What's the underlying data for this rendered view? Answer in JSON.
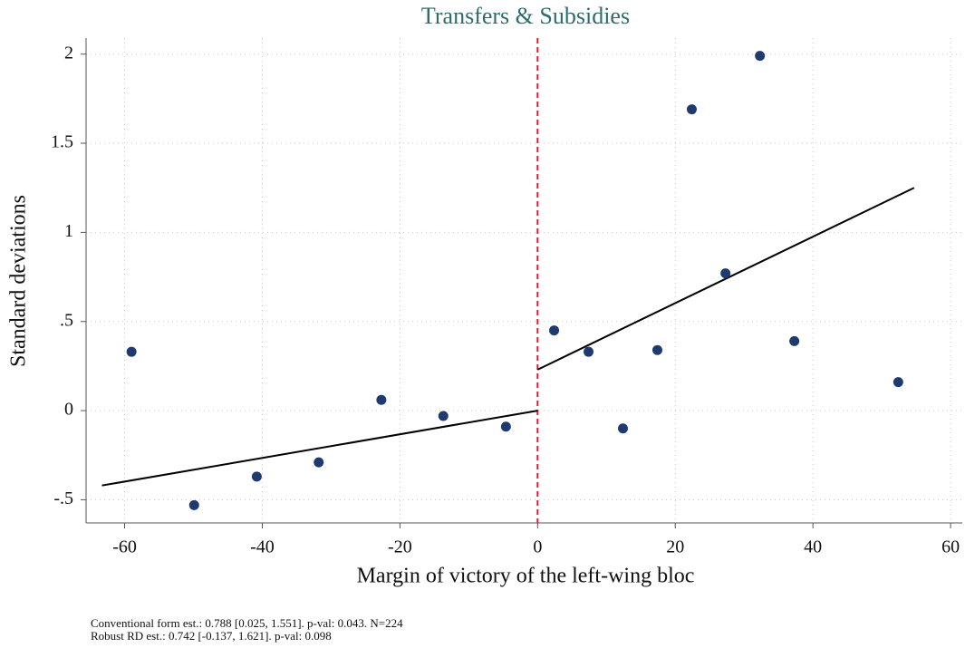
{
  "chart_data": {
    "type": "scatter",
    "title": "Transfers & Subsidies",
    "xlabel": "Margin of victory of the left-wing bloc",
    "ylabel": "Standard deviations",
    "title_color": "#2b6d6a",
    "series": [
      {
        "color": "#1f3a6e",
        "x": [
          -59.0,
          -49.9,
          -40.8,
          -31.8,
          -22.7,
          -13.7,
          -4.6,
          2.4,
          7.4,
          12.4,
          17.4,
          22.4,
          27.3,
          32.3,
          37.3,
          52.4
        ],
        "values": [
          0.33,
          -0.53,
          -0.37,
          -0.29,
          0.06,
          -0.03,
          -0.09,
          0.45,
          0.33,
          -0.1,
          0.34,
          1.69,
          0.77,
          1.99,
          0.39,
          0.16
        ]
      }
    ],
    "fit_lines": [
      {
        "color": "#000000",
        "x": [
          -63.3,
          0
        ],
        "values": [
          -0.42,
          0
        ]
      },
      {
        "color": "#000000",
        "x": [
          0,
          54.7
        ],
        "values": [
          0.23,
          1.25
        ]
      }
    ],
    "vline": {
      "x": 0,
      "color": "#d0203a",
      "dashed": true
    },
    "xlim": [
      -65.6,
      61.7
    ],
    "ylim": [
      -0.63,
      2.09
    ],
    "xticks": [
      -60,
      -40,
      -20,
      0,
      20,
      40,
      60
    ],
    "yticks": [
      {
        "value": -0.5,
        "label": "-.5"
      },
      0,
      {
        "value": 0.5,
        "label": ".5"
      },
      1,
      1.5,
      2
    ],
    "grid": true,
    "footnotes": [
      "Conventional form est.: 0.788 [0.025, 1.551]. p-val: 0.043. N=224",
      "Robust RD est.: 0.742 [-0.137, 1.621]. p-val: 0.098"
    ]
  }
}
